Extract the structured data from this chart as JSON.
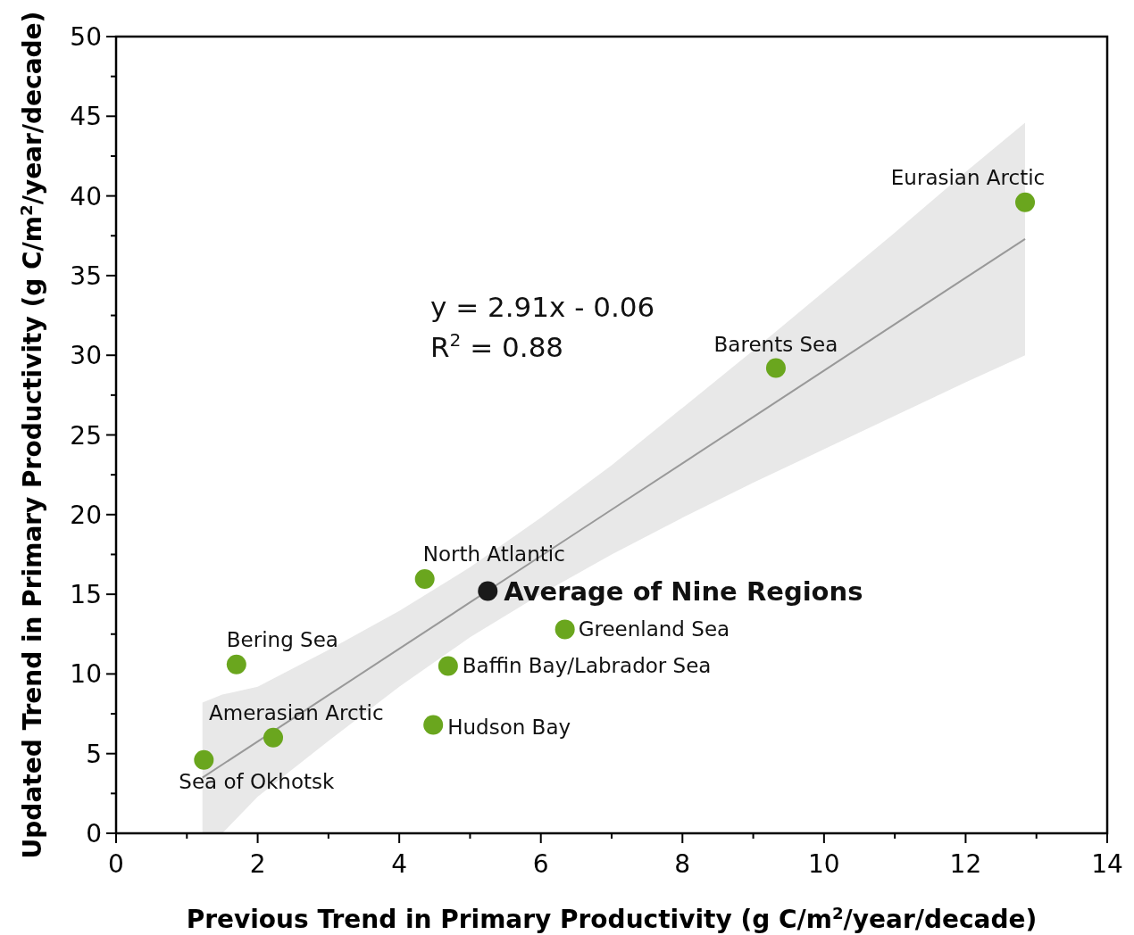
{
  "chart_data": {
    "type": "scatter",
    "xlabel": "Previous Trend in Primary Productivity (g C/m$^{2}$/year/decade)",
    "ylabel": "Updated Trend in Primary Productivity (g C/m$^{2}$/year/decade)",
    "xlim": [
      0,
      14
    ],
    "ylim": [
      0,
      50
    ],
    "xticks": [
      0,
      {
        "value": 1,
        "label": null
      },
      2,
      {
        "value": 3,
        "label": null
      },
      4,
      {
        "value": 5,
        "label": null
      },
      6,
      {
        "value": 7,
        "label": null
      },
      8,
      {
        "value": 9,
        "label": null
      },
      10,
      {
        "value": 11,
        "label": null
      },
      12,
      {
        "value": 13,
        "label": null
      },
      14
    ],
    "yticks": [
      0,
      {
        "value": 2.5,
        "label": null
      },
      5,
      {
        "value": 7.5,
        "label": null
      },
      10,
      {
        "value": 12.5,
        "label": null
      },
      15,
      {
        "value": 17.5,
        "label": null
      },
      20,
      {
        "value": 22.5,
        "label": null
      },
      25,
      {
        "value": 27.5,
        "label": null
      },
      30,
      {
        "value": 32.5,
        "label": null
      },
      35,
      {
        "value": 37.5,
        "label": null
      },
      40,
      {
        "value": 42.5,
        "label": null
      },
      45,
      {
        "value": 47.5,
        "label": null
      },
      50
    ],
    "grid": false,
    "marker": "circle",
    "series": [
      {
        "type": "line",
        "marker": "none",
        "color": "#999999",
        "x": [
          1.22,
          1.5,
          2,
          3,
          4,
          5,
          6,
          7,
          8,
          9,
          10,
          11,
          12,
          12.84
        ],
        "values": [
          3.49,
          4.31,
          5.76,
          8.67,
          11.58,
          14.49,
          17.4,
          20.31,
          23.22,
          26.13,
          29.04,
          31.95,
          34.86,
          37.3
        ],
        "lower": [
          0,
          0,
          2.3,
          5.8,
          9.2,
          12.3,
          15.0,
          17.5,
          19.8,
          22.0,
          24.1,
          26.2,
          28.3,
          30.0
        ],
        "upper": [
          8.2,
          8.7,
          9.2,
          11.5,
          13.95,
          16.7,
          19.8,
          23.1,
          26.7,
          30.3,
          34.0,
          37.7,
          41.5,
          44.6
        ]
      },
      {
        "color": "#6aa61e",
        "x": [
          12.84,
          9.32,
          4.36,
          6.34,
          1.7,
          4.69,
          4.48,
          2.22,
          1.24
        ],
        "values": [
          39.6,
          29.2,
          15.96,
          12.8,
          10.6,
          10.5,
          6.8,
          6.0,
          4.6
        ]
      },
      {
        "name": "Average of Nine Regions",
        "color": "#1a1a1a",
        "x": [
          5.25
        ],
        "values": [
          15.2
        ]
      }
    ],
    "annotations": [
      {
        "text": "Eurasian Arctic",
        "x": 12.84,
        "y": 39.6
      },
      {
        "text": "Barents Sea",
        "x": 9.32,
        "y": 29.2
      },
      {
        "text": "North Atlantic",
        "x": 4.36,
        "y": 15.96
      },
      {
        "text": "Greenland Sea",
        "x": 6.34,
        "y": 12.8
      },
      {
        "text": "Bering Sea",
        "x": 1.7,
        "y": 10.6
      },
      {
        "text": "Baffin Bay/Labrador Sea",
        "x": 4.69,
        "y": 10.5
      },
      {
        "text": "Hudson Bay",
        "x": 4.48,
        "y": 6.8
      },
      {
        "text": "Amerasian Arctic",
        "x": 2.22,
        "y": 6.0
      },
      {
        "text": "Sea of Okhotsk",
        "x": 1.24,
        "y": 4.6
      },
      "y = 2.91x - 0.06",
      "R$^{2}$ = 0.88"
    ]
  }
}
